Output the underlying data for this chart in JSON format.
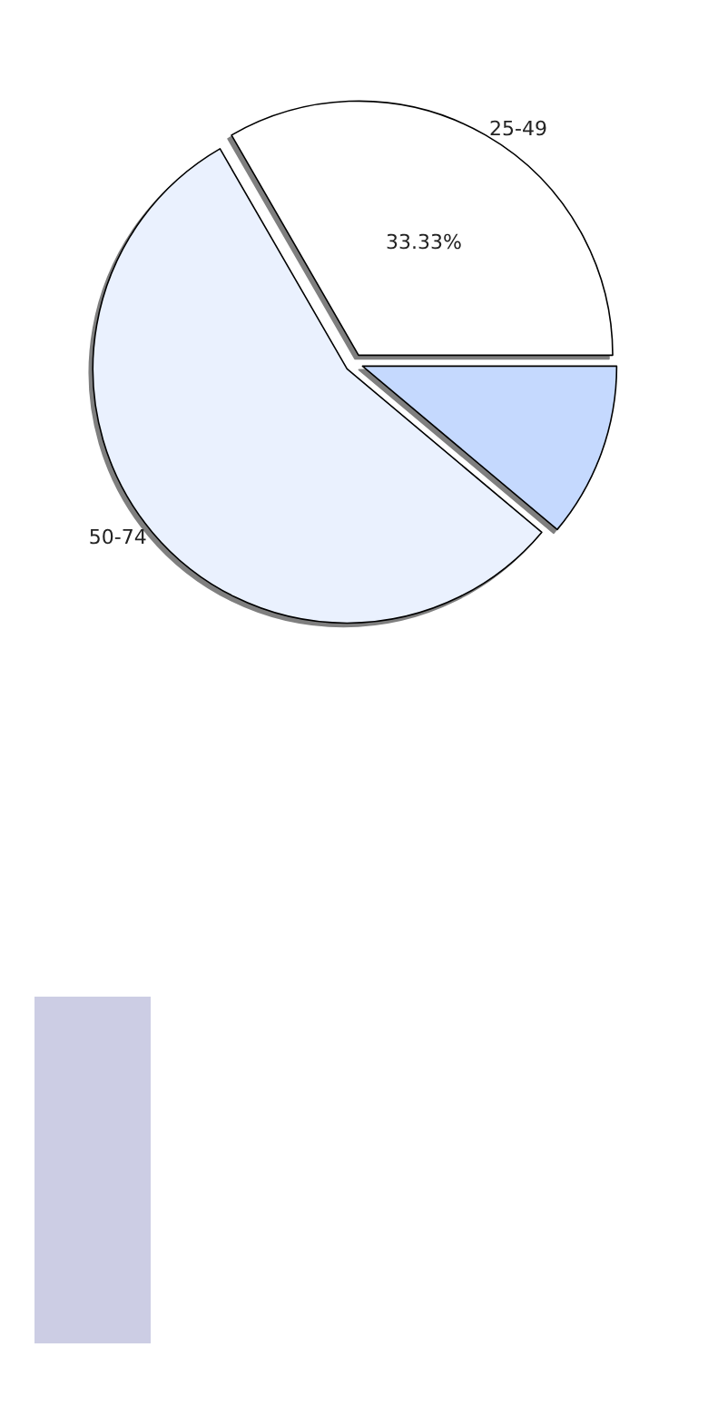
{
  "chart_data": {
    "type": "pie",
    "categories": [
      "25-49",
      "50-74",
      null
    ],
    "values": [
      33.33,
      55.56,
      11.11
    ],
    "colors": [
      "#ffffff",
      "#eaf1fe",
      "#c5d9fe"
    ],
    "value_labels": [
      "33.33%",
      null,
      null
    ],
    "legend": false
  }
}
